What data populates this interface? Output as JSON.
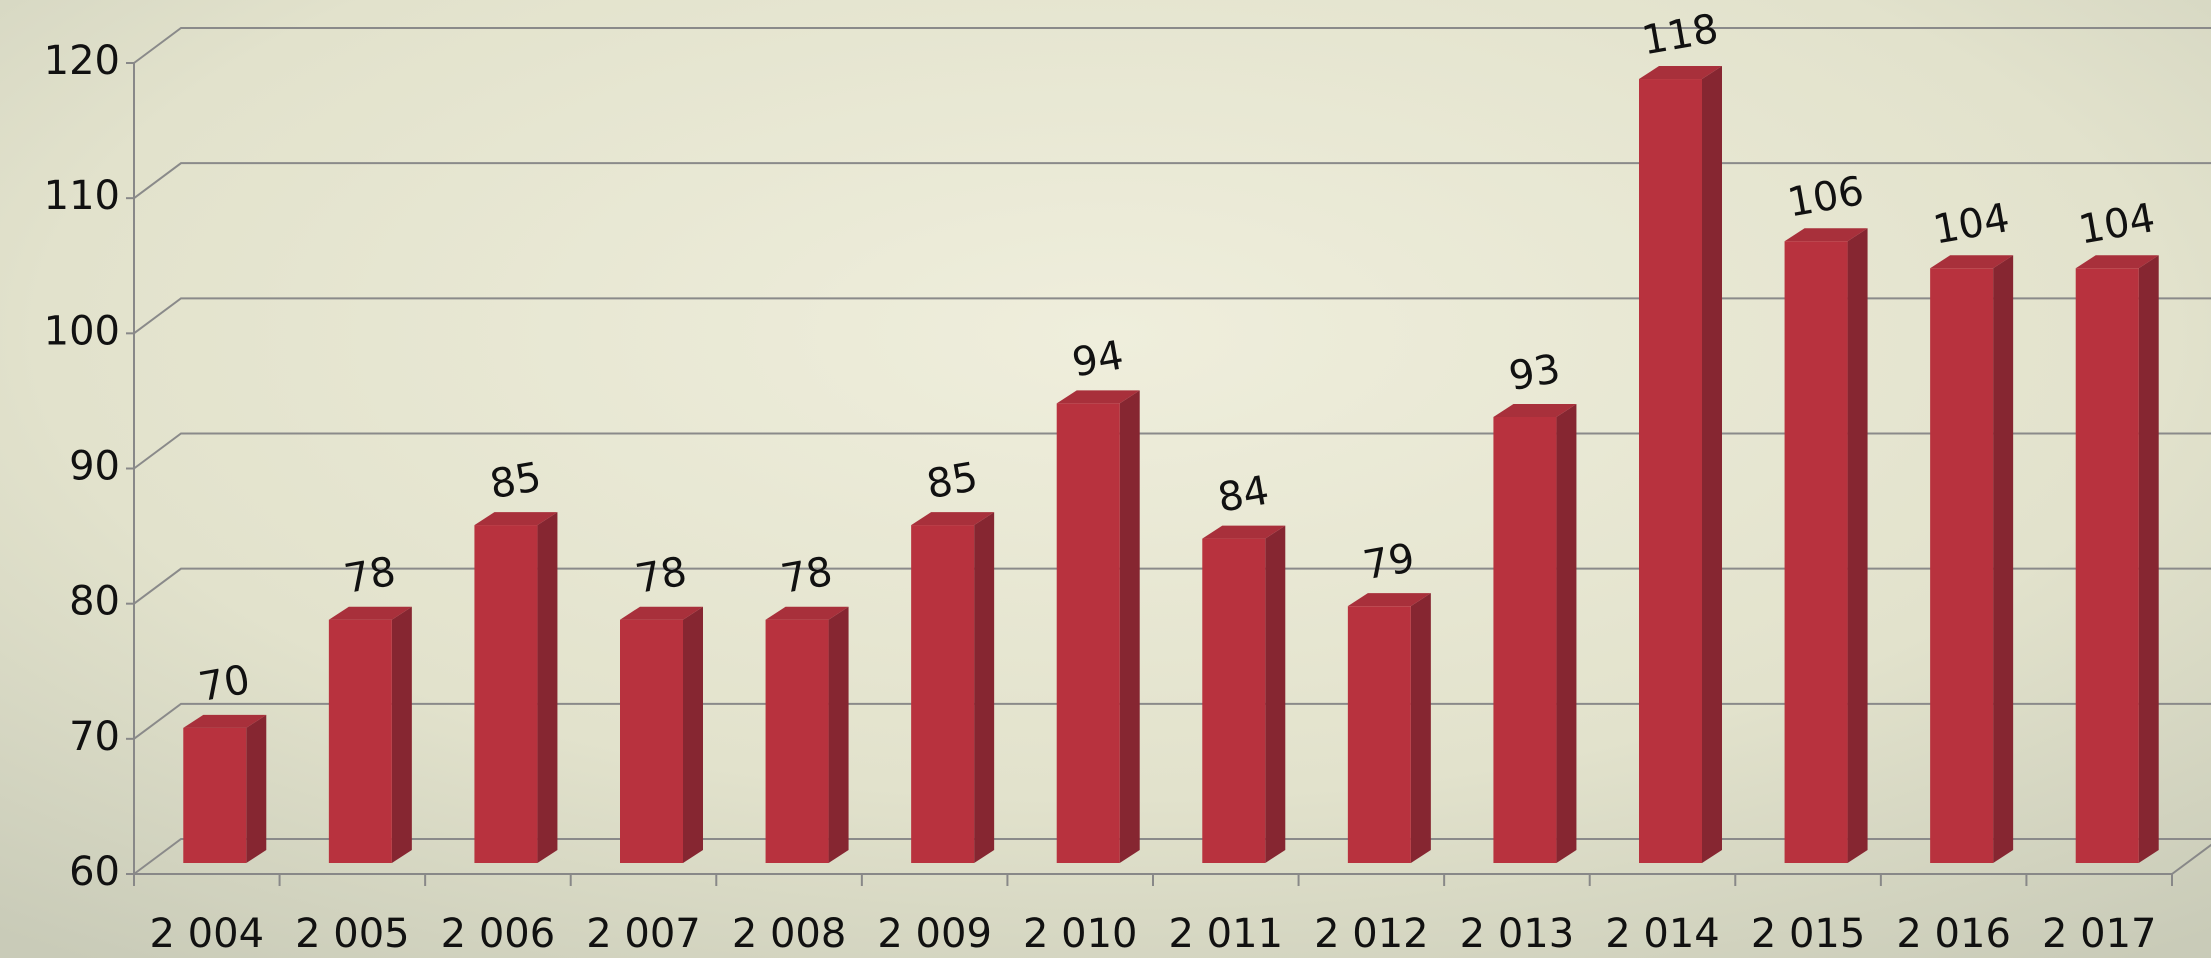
{
  "chart_data": {
    "type": "bar",
    "categories": [
      "2 004",
      "2 005",
      "2 006",
      "2 007",
      "2 008",
      "2 009",
      "2 010",
      "2 011",
      "2 012",
      "2 013",
      "2 014",
      "2 015",
      "2 016",
      "2 017"
    ],
    "values": [
      70,
      78,
      85,
      78,
      78,
      85,
      94,
      84,
      79,
      93,
      118,
      106,
      104,
      104
    ],
    "color": "#b8323e",
    "ylim": [
      60,
      120
    ],
    "yticks": [
      60,
      70,
      80,
      90,
      100,
      110,
      120
    ],
    "grid": true
  }
}
